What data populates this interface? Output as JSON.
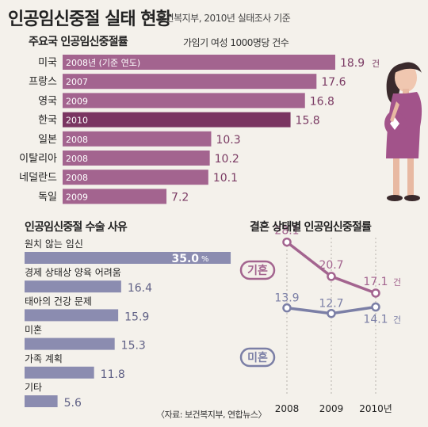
{
  "title": "인공임신중절 실태 현황",
  "subtitle": "보건복지부, 2010년 실태조사 기준",
  "source": "〈자료: 보건복지부, 연합뉴스〉",
  "chart_data": [
    {
      "type": "bar",
      "orientation": "horizontal",
      "title": "주요국 인공임신중절률",
      "note": "가임기 여성 1000명당 건수",
      "unit": "건",
      "categories": [
        "미국",
        "프랑스",
        "영국",
        "한국",
        "일본",
        "이탈리아",
        "네덜란드",
        "독일"
      ],
      "years": [
        "2008년 (기준 연도)",
        "2007",
        "2009",
        "2010",
        "2008",
        "2008",
        "2008",
        "2009"
      ],
      "values": [
        18.9,
        17.6,
        16.8,
        15.8,
        10.3,
        10.2,
        10.1,
        7.2
      ],
      "highlight": "한국",
      "colors": {
        "bar": "#a3648f",
        "highlight": "#7a3561",
        "value": "#7a3a63"
      }
    },
    {
      "type": "bar",
      "orientation": "horizontal",
      "title": "인공임신중절 수술 사유",
      "unit": "%",
      "categories": [
        "원치 않는 임신",
        "경제 상태상 양육 어려움",
        "태아의 건강 문제",
        "미혼",
        "가족 계획",
        "기타"
      ],
      "values": [
        35.0,
        16.4,
        15.9,
        15.3,
        11.8,
        5.6
      ],
      "colors": {
        "bar": "#8b8cb0",
        "value": "#5f6085"
      }
    },
    {
      "type": "line",
      "title": "결혼 상태별 인공임신중절률",
      "unit": "건",
      "x": [
        "2008",
        "2009",
        "2010년"
      ],
      "series": [
        {
          "name": "기혼",
          "values": [
            28.1,
            20.7,
            17.1
          ],
          "color": "#a3648f"
        },
        {
          "name": "미혼",
          "values": [
            13.9,
            12.7,
            14.1
          ],
          "color": "#7b7fa6"
        }
      ]
    }
  ]
}
